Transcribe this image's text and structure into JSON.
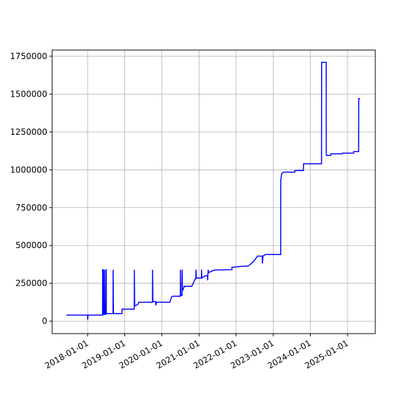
{
  "chart_data": {
    "type": "line",
    "x": [
      "2017-06-06",
      "2018-01-01",
      "2018-01-02",
      "2018-01-05",
      "2018-05-28",
      "2018-05-29",
      "2018-06-03",
      "2018-06-04",
      "2018-06-14",
      "2018-06-15",
      "2018-06-18",
      "2018-06-28",
      "2018-06-29",
      "2018-07-03",
      "2018-07-04",
      "2018-09-08",
      "2018-09-09",
      "2018-09-12",
      "2018-12-05",
      "2018-12-06",
      "2019-04-05",
      "2019-04-06",
      "2019-04-09",
      "2019-05-10",
      "2019-05-20",
      "2019-10-01",
      "2019-10-02",
      "2019-10-05",
      "2019-11-01",
      "2019-11-02",
      "2019-11-10",
      "2020-03-20",
      "2020-04-05",
      "2020-04-20",
      "2020-07-01",
      "2020-07-02",
      "2020-07-05",
      "2020-07-18",
      "2020-07-19",
      "2020-07-22",
      "2020-08-10",
      "2020-10-20",
      "2020-11-05",
      "2020-11-25",
      "2020-12-01",
      "2020-12-02",
      "2020-12-05",
      "2021-01-25",
      "2021-01-26",
      "2021-01-29",
      "2021-03-05",
      "2021-03-25",
      "2021-03-26",
      "2021-04-01",
      "2021-04-05",
      "2021-05-01",
      "2021-06-10",
      "2021-11-20",
      "2021-11-21",
      "2022-01-15",
      "2022-05-01",
      "2022-06-15",
      "2022-08-01",
      "2022-09-15",
      "2022-09-16",
      "2022-09-22",
      "2022-10-15",
      "2023-03-15",
      "2023-03-16",
      "2023-03-25",
      "2023-04-15",
      "2023-08-01",
      "2023-08-02",
      "2023-10-25",
      "2023-10-26",
      "2024-04-20",
      "2024-04-21",
      "2024-06-05",
      "2024-06-06",
      "2024-07-20",
      "2024-07-21",
      "2024-11-10",
      "2024-11-11",
      "2025-03-01",
      "2025-03-02",
      "2025-04-20",
      "2025-04-21",
      "2025-05-05"
    ],
    "series": [
      {
        "color": "#0000ff",
        "values": [
          40000,
          40000,
          10000,
          40000,
          40000,
          340000,
          340000,
          45000,
          45000,
          340000,
          45000,
          45000,
          340000,
          340000,
          50000,
          50000,
          340000,
          50000,
          50000,
          80000,
          80000,
          340000,
          100000,
          110000,
          125000,
          125000,
          340000,
          130000,
          130000,
          105000,
          125000,
          125000,
          160000,
          165000,
          165000,
          340000,
          170000,
          170000,
          340000,
          200000,
          230000,
          230000,
          250000,
          280000,
          280000,
          340000,
          285000,
          285000,
          340000,
          285000,
          300000,
          300000,
          270000,
          340000,
          320000,
          330000,
          338000,
          340000,
          355000,
          360000,
          365000,
          390000,
          430000,
          430000,
          380000,
          430000,
          440000,
          440000,
          930000,
          975000,
          985000,
          985000,
          995000,
          995000,
          1040000,
          1040000,
          1710000,
          1710000,
          1095000,
          1095000,
          1105000,
          1105000,
          1110000,
          1110000,
          1120000,
          1120000,
          1470000,
          1470000
        ]
      }
    ],
    "xlim": [
      "2017-01-17",
      "2025-10-01"
    ],
    "xticks": [
      "2018-01-01",
      "2019-01-01",
      "2020-01-01",
      "2021-01-01",
      "2022-01-01",
      "2023-01-01",
      "2024-01-01",
      "2025-01-01"
    ],
    "ylim": [
      -82000,
      1791000
    ],
    "yticks": [
      0,
      250000,
      500000,
      750000,
      1000000,
      1250000,
      1500000,
      1750000
    ],
    "grid": true
  }
}
